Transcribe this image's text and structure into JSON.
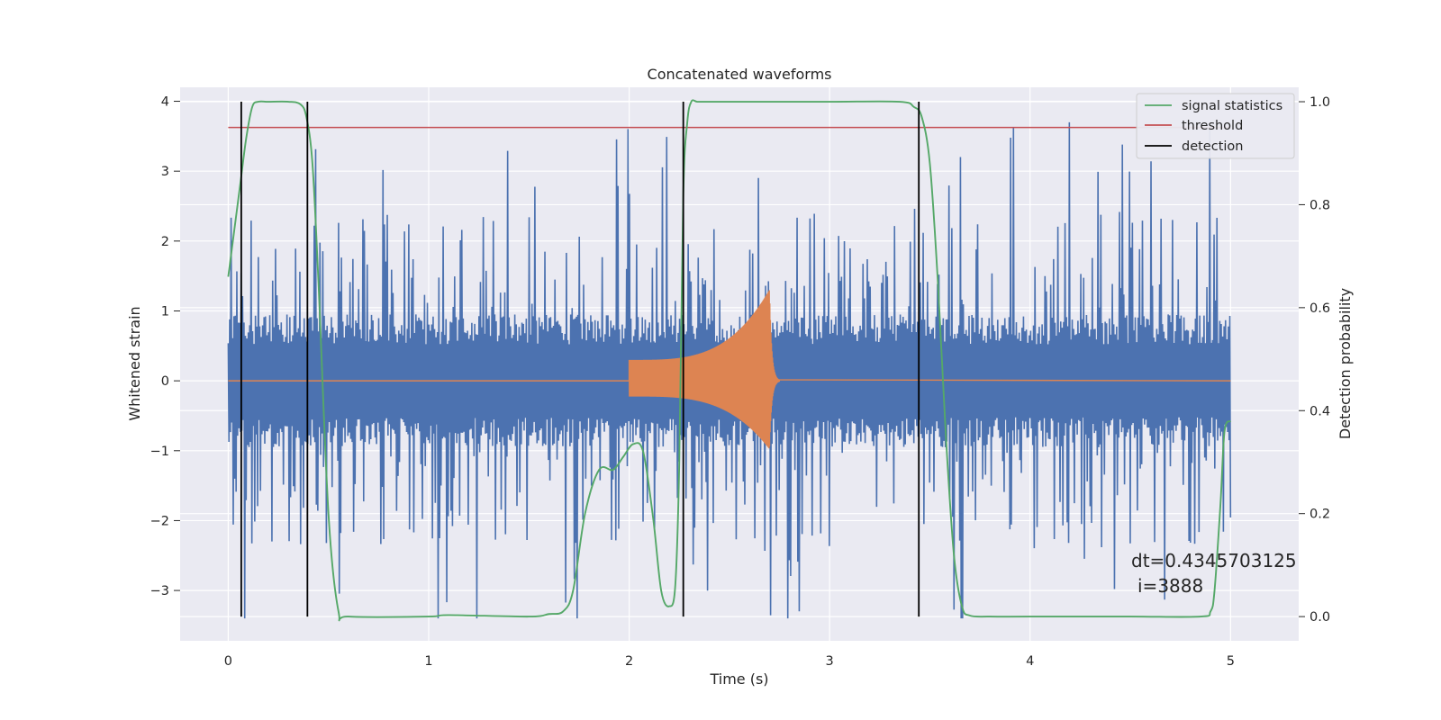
{
  "chart_data": {
    "type": "line",
    "title": "Concatenated waveforms",
    "xlabel": "Time (s)",
    "ylabel": "Whitened strain",
    "y2label": "Detection probability",
    "xlim": [
      -0.24,
      5.34
    ],
    "ylim": [
      -3.72,
      4.2
    ],
    "y2lim": [
      -0.047,
      1.028
    ],
    "xticks": [
      "0",
      "1",
      "2",
      "3",
      "4",
      "5"
    ],
    "xtick_values": [
      0,
      1,
      2,
      3,
      4,
      5
    ],
    "yticks": [
      "−3",
      "−2",
      "−1",
      "0",
      "1",
      "2",
      "3",
      "4"
    ],
    "ytick_values": [
      -3,
      -2,
      -1,
      0,
      1,
      2,
      3,
      4
    ],
    "y2ticks": [
      "0.0",
      "0.2",
      "0.4",
      "0.6",
      "0.8",
      "1.0"
    ],
    "y2tick_values": [
      0,
      0.2,
      0.4,
      0.6,
      0.8,
      1.0
    ],
    "grid": true,
    "legend_position": "top-right",
    "colors": {
      "strain": "#4c72b0",
      "template": "#dd8452",
      "signal_statistics": "#55a868",
      "threshold": "#c44e52",
      "detection": "#000000",
      "plot_bg": "#eaeaf2",
      "grid": "#ffffff"
    },
    "strain": {
      "x_start": 0,
      "x_end": 5,
      "amplitude_range": [
        -3.4,
        3.85
      ]
    },
    "template": {
      "x_start": 2.0,
      "x_merger": 2.7,
      "x_end": 2.75,
      "peak_amplitude": 1.3
    },
    "series": [
      {
        "name": "signal statistics",
        "axis": "right",
        "x": [
          0.0,
          0.03,
          0.06,
          0.09,
          0.12,
          0.15,
          0.2,
          0.3,
          0.36,
          0.39,
          0.42,
          0.45,
          0.5,
          0.55,
          0.6,
          1.0,
          1.1,
          1.5,
          1.6,
          1.67,
          1.72,
          1.78,
          1.85,
          1.92,
          1.97,
          2.02,
          2.07,
          2.12,
          2.16,
          2.2,
          2.23,
          2.25,
          2.27,
          2.29,
          2.31,
          2.34,
          2.4,
          2.6,
          3.0,
          3.35,
          3.42,
          3.46,
          3.5,
          3.54,
          3.58,
          3.62,
          3.66,
          3.7,
          3.8,
          4.0,
          4.5,
          4.85,
          4.9,
          4.92,
          4.95,
          4.97,
          5.0
        ],
        "y": [
          0.66,
          0.75,
          0.84,
          0.93,
          0.99,
          1.0,
          1.0,
          1.0,
          0.995,
          0.97,
          0.88,
          0.65,
          0.2,
          0.01,
          0.0,
          0.0,
          0.003,
          0.0,
          0.005,
          0.01,
          0.05,
          0.2,
          0.285,
          0.285,
          0.31,
          0.335,
          0.32,
          0.19,
          0.05,
          0.02,
          0.06,
          0.3,
          0.82,
          0.96,
          1.0,
          1.0,
          1.0,
          1.0,
          1.0,
          1.0,
          0.99,
          0.97,
          0.88,
          0.65,
          0.35,
          0.12,
          0.02,
          0.002,
          0.0,
          0.0,
          0.0,
          0.0,
          0.01,
          0.05,
          0.22,
          0.36,
          0.38
        ]
      },
      {
        "name": "threshold",
        "axis": "right",
        "x": [
          0,
          5
        ],
        "y": [
          0.95,
          0.95
        ]
      },
      {
        "name": "detection",
        "axis": "right",
        "x": [
          0.065,
          0.395,
          2.27,
          3.445
        ],
        "y_range": [
          0,
          1.0
        ]
      }
    ],
    "annotations": [
      "dt=0.4345703125",
      "i=3888"
    ]
  }
}
